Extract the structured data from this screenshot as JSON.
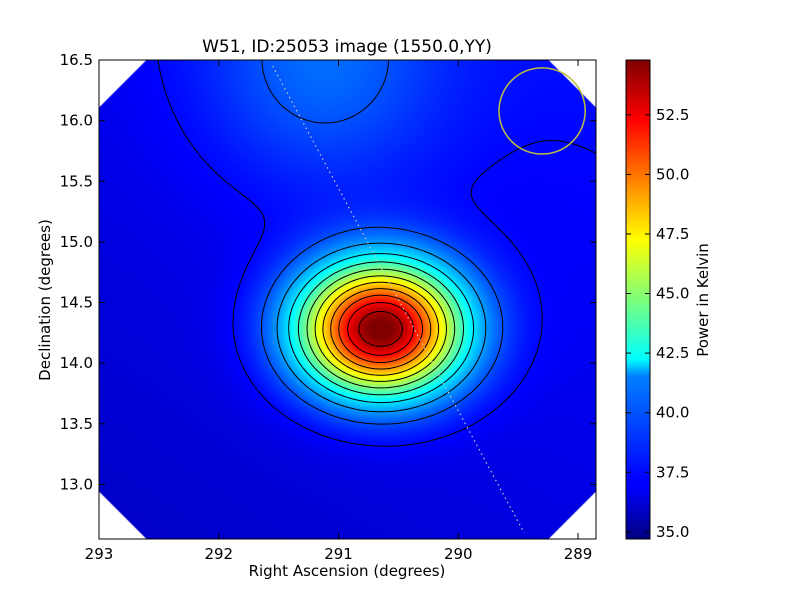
{
  "chart_data": {
    "type": "heatmap",
    "title": "W51, ID:25053 image (1550.0,YY)",
    "xlabel": "Right Ascension (degrees)",
    "ylabel": "Declination (degrees)",
    "xlim": [
      293.0,
      288.85
    ],
    "ylim": [
      12.55,
      16.5
    ],
    "x_ticks": [
      {
        "value": 293,
        "label": "293"
      },
      {
        "value": 292,
        "label": "292"
      },
      {
        "value": 291,
        "label": "291"
      },
      {
        "value": 290,
        "label": "290"
      },
      {
        "value": 289,
        "label": "289"
      }
    ],
    "y_ticks": [
      {
        "value": 13.0,
        "label": "13.0"
      },
      {
        "value": 13.5,
        "label": "13.5"
      },
      {
        "value": 14.0,
        "label": "14.0"
      },
      {
        "value": 14.5,
        "label": "14.5"
      },
      {
        "value": 15.0,
        "label": "15.0"
      },
      {
        "value": 15.5,
        "label": "15.5"
      },
      {
        "value": 16.0,
        "label": "16.0"
      },
      {
        "value": 16.5,
        "label": "16.5"
      }
    ],
    "colorbar": {
      "label": "Power in Kelvin",
      "range": [
        34.7,
        54.8
      ],
      "ticks": [
        {
          "value": 35.0,
          "label": "35.0"
        },
        {
          "value": 37.5,
          "label": "37.5"
        },
        {
          "value": 40.0,
          "label": "40.0"
        },
        {
          "value": 42.5,
          "label": "42.5"
        },
        {
          "value": 45.0,
          "label": "45.0"
        },
        {
          "value": 47.5,
          "label": "47.5"
        },
        {
          "value": 50.0,
          "label": "50.0"
        },
        {
          "value": 52.5,
          "label": "52.5"
        }
      ],
      "colormap": "jet"
    },
    "peak": {
      "x": 290.65,
      "y": 14.28,
      "value": 54.8
    },
    "sources": [
      {
        "x": 290.65,
        "y": 14.28,
        "amplitude": 18.3,
        "sigma_x": 0.48,
        "sigma_y": 0.38
      },
      {
        "x": 291.15,
        "y": 16.45,
        "amplitude": 2.2,
        "sigma_x": 0.7,
        "sigma_y": 0.7
      }
    ],
    "background": {
      "level": 36.5,
      "high_side": "top-right",
      "low_side": "bottom-left"
    },
    "contour_levels": [
      37.3,
      38.8,
      40.3,
      41.8,
      43.3,
      44.8,
      46.3,
      47.8,
      49.3,
      50.8,
      52.3,
      53.8
    ],
    "beam_circle": {
      "x": 289.3,
      "y": 16.08,
      "radius": 0.36,
      "color": "#bfbf3f"
    },
    "dotted_line": {
      "from": [
        291.55,
        16.45
      ],
      "to": [
        289.45,
        12.6
      ],
      "color": "#c8c8c8"
    },
    "grid": false
  }
}
